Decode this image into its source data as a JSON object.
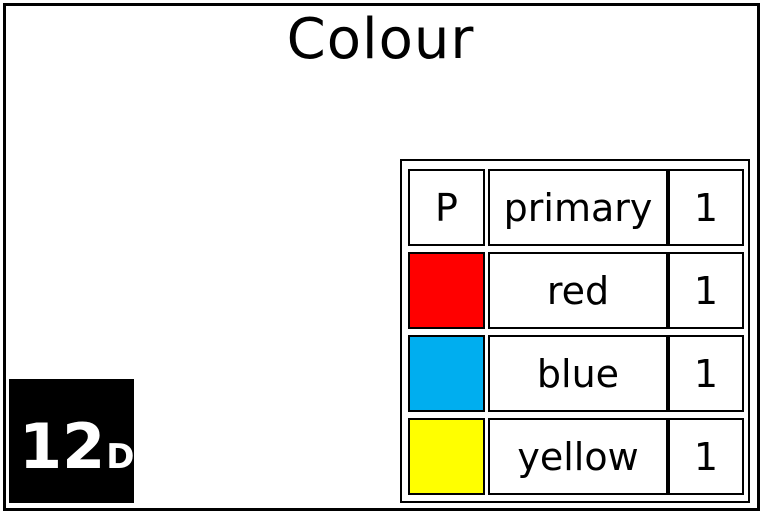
{
  "title": "Colour",
  "table": {
    "header": {
      "code": "P",
      "word": "primary",
      "count": "1"
    },
    "rows": [
      {
        "swatch_color": "#ff0000",
        "word": "red",
        "count": "1"
      },
      {
        "swatch_color": "#00aeef",
        "word": "blue",
        "count": "1"
      },
      {
        "swatch_color": "#ffff00",
        "word": "yellow",
        "count": "1"
      }
    ]
  },
  "badge": {
    "number": "12",
    "letter": "D"
  }
}
